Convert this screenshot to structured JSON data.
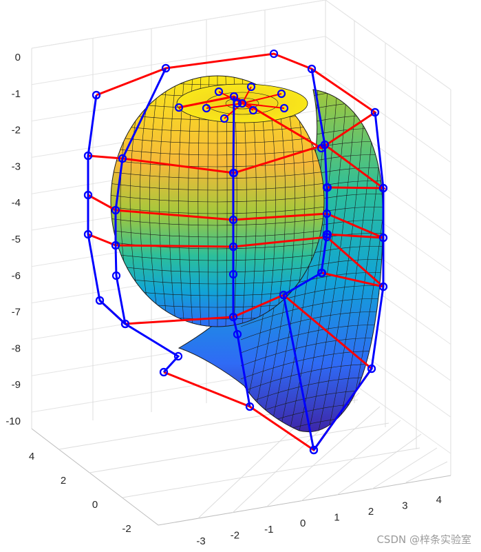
{
  "chart_data": {
    "type": "surface3d",
    "title": "",
    "xlabel": "",
    "ylabel": "",
    "zlabel": "",
    "z_ticks": [
      "0",
      "-1",
      "-2",
      "-3",
      "-4",
      "-5",
      "-6",
      "-7",
      "-8",
      "-9",
      "-10"
    ],
    "x_ticks": [
      "-3",
      "-2",
      "-1",
      "0",
      "1",
      "2",
      "3",
      "4"
    ],
    "y_ticks": [
      "-2",
      "0",
      "2",
      "4"
    ],
    "xlim": [
      -3.5,
      4.5
    ],
    "ylim": [
      -3,
      4.5
    ],
    "zlim": [
      -10,
      0
    ],
    "grid": true,
    "surface": {
      "description_free": true,
      "colormap": [
        "#3e26a8",
        "#2f6bf5",
        "#11a4d6",
        "#2bbf9c",
        "#a2c83c",
        "#f6b93a",
        "#f9e71a"
      ]
    },
    "control_polygon": {
      "line_color": "#ff0000",
      "point_color": "#0000ff"
    }
  },
  "watermark": "CSDN @梓条实验室"
}
